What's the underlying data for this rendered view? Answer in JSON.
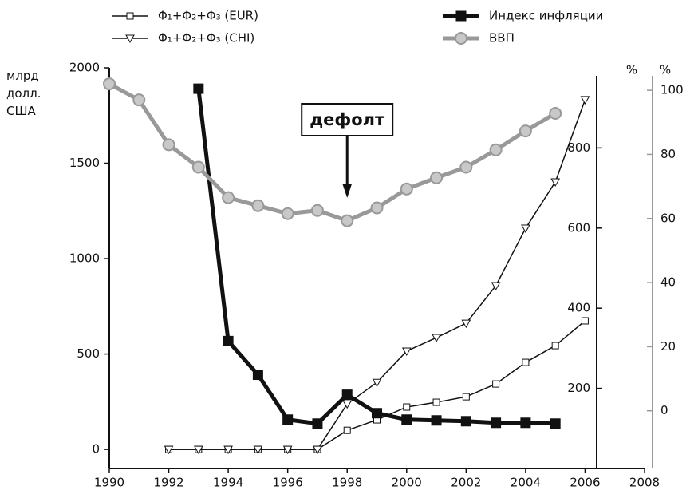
{
  "chart_data": {
    "type": "line",
    "ylabel": "млрд долл. США",
    "y2label": "%",
    "y3label": "%",
    "annotation": {
      "text": "дефолт",
      "x": 1998
    },
    "x": [
      1990,
      1991,
      1992,
      1993,
      1994,
      1995,
      1996,
      1997,
      1998,
      1999,
      2000,
      2001,
      2002,
      2003,
      2004,
      2005,
      2006
    ],
    "series": [
      {
        "name": "Φ₁+Φ₂+Φ₃ (EUR)",
        "color": "#111111",
        "marker": "square-open",
        "axis": "y",
        "values": [
          null,
          null,
          0,
          0,
          0,
          0,
          0,
          0,
          100,
          155,
          222,
          247,
          276,
          343,
          456,
          544,
          674
        ]
      },
      {
        "name": "Φ₁+Φ₂+Φ₃ (CHI)",
        "color": "#111111",
        "marker": "triangle-open",
        "axis": "y",
        "values": [
          null,
          null,
          0,
          0,
          0,
          0,
          0,
          0,
          238,
          351,
          515,
          586,
          661,
          858,
          1159,
          1402,
          1833
        ]
      },
      {
        "name": "Индекс инфляции",
        "color": "#111111",
        "marker": "square-filled",
        "axis": "y2",
        "values": [
          null,
          null,
          null,
          948,
          318,
          234,
          122,
          112,
          184,
          138,
          122,
          120,
          118,
          114,
          114,
          112,
          null
        ]
      },
      {
        "name": "ВВП",
        "color": "#999999",
        "marker": "circle",
        "axis": "y3",
        "values": [
          102,
          97,
          83,
          76,
          66.5,
          64,
          61.5,
          62.5,
          59.3,
          63.3,
          69.2,
          72.7,
          76,
          81.4,
          87.3,
          92.8,
          null
        ]
      }
    ],
    "xlim": [
      1990,
      2008
    ],
    "xticks": [
      1990,
      1992,
      1994,
      1996,
      1998,
      2000,
      2002,
      2004,
      2006,
      2008
    ],
    "ylim": [
      -100,
      2000
    ],
    "yticks": [
      0,
      500,
      1000,
      1500,
      2000
    ],
    "y2lim": [
      0,
      1000
    ],
    "y2ticks": [
      200,
      400,
      600,
      800
    ],
    "y2color": "#111111",
    "y3lim": [
      -18,
      107
    ],
    "y3ticks": [
      0,
      20,
      40,
      60,
      80,
      100
    ],
    "y3color": "#999999"
  }
}
